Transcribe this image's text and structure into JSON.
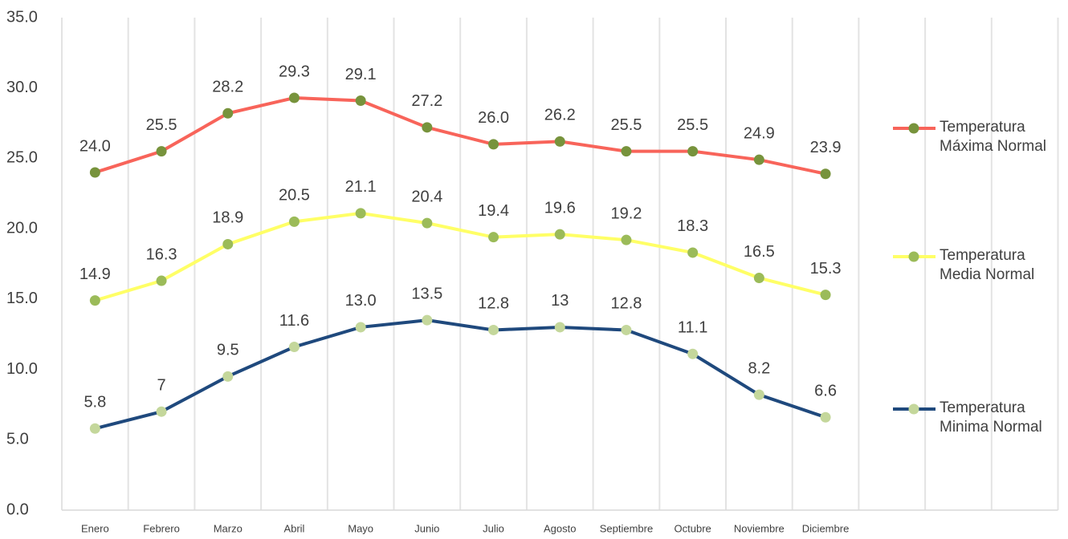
{
  "chart_data": {
    "type": "line",
    "categories": [
      "Enero",
      "Febrero",
      "Marzo",
      "Abril",
      "Mayo",
      "Junio",
      "Julio",
      "Agosto",
      "Septiembre",
      "Octubre",
      "Noviembre",
      "Diciembre"
    ],
    "series": [
      {
        "name": "Temperatura Máxima Normal",
        "color": "#f8645a",
        "marker_color": "#77933c",
        "values": [
          24.0,
          25.5,
          28.2,
          29.3,
          29.1,
          27.2,
          26.0,
          26.2,
          25.5,
          25.5,
          24.9,
          23.9
        ],
        "value_labels": [
          "24.0",
          "25.5",
          "28.2",
          "29.3",
          "29.1",
          "27.2",
          "26.0",
          "26.2",
          "25.5",
          "25.5",
          "24.9",
          "23.9"
        ]
      },
      {
        "name": "Temperatura Media Normal",
        "color": "#ffff66",
        "marker_color": "#9bbb59",
        "values": [
          14.9,
          16.3,
          18.9,
          20.5,
          21.1,
          20.4,
          19.4,
          19.6,
          19.2,
          18.3,
          16.5,
          15.3
        ],
        "value_labels": [
          "14.9",
          "16.3",
          "18.9",
          "20.5",
          "21.1",
          "20.4",
          "19.4",
          "19.6",
          "19.2",
          "18.3",
          "16.5",
          "15.3"
        ]
      },
      {
        "name": "Temperatura Minima Normal",
        "color": "#1f497d",
        "marker_color": "#c4d79b",
        "values": [
          5.8,
          7,
          9.5,
          11.6,
          13.0,
          13.5,
          12.8,
          13,
          12.8,
          11.1,
          8.2,
          6.6
        ],
        "value_labels": [
          "5.8",
          "7",
          "9.5",
          "11.6",
          "13.0",
          "13.5",
          "12.8",
          "13",
          "12.8",
          "11.1",
          "8.2",
          "6.6"
        ]
      }
    ],
    "ylim": [
      0,
      35
    ],
    "yticks": [
      {
        "value": 0,
        "label": "0.0"
      },
      {
        "value": 5,
        "label": "5.0"
      },
      {
        "value": 10,
        "label": "10.0"
      },
      {
        "value": 15,
        "label": "15.0"
      },
      {
        "value": 20,
        "label": "20.0"
      },
      {
        "value": 25,
        "label": "25.0"
      },
      {
        "value": 30,
        "label": "30.0"
      },
      {
        "value": 35,
        "label": "35.0"
      }
    ],
    "legend": "right"
  }
}
